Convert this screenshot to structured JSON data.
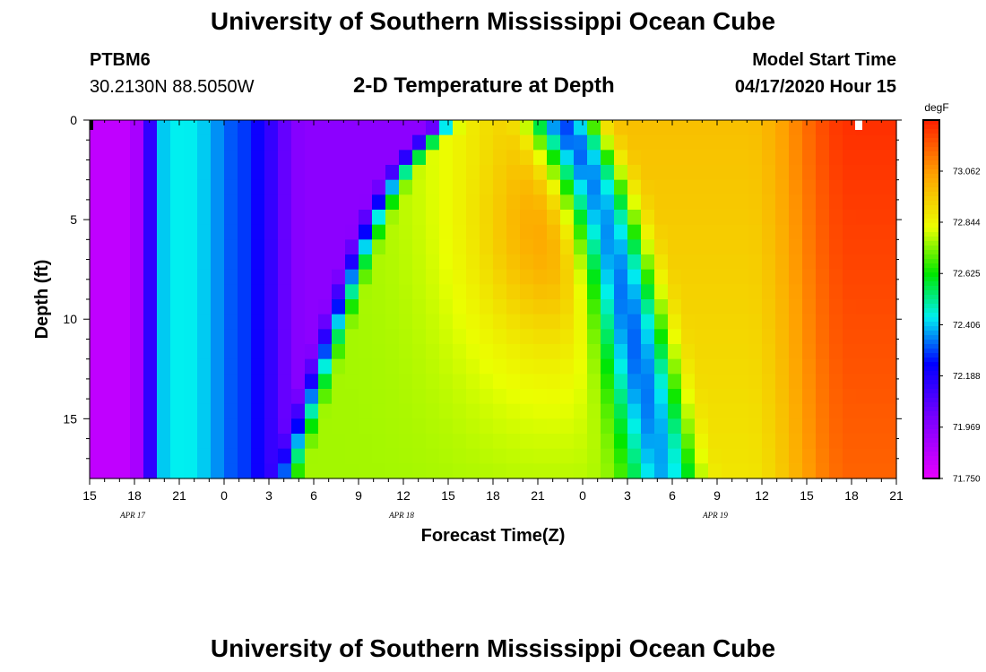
{
  "header": {
    "title": "University of Southern Mississippi Ocean Cube",
    "station": "PTBM6",
    "location": "30.2130N 88.5050W",
    "plot_title": "2-D Temperature at Depth",
    "model_start_label": "Model Start Time",
    "model_start_value": "04/17/2020 Hour 15"
  },
  "footer": {
    "title": "University of Southern Mississippi Ocean Cube"
  },
  "chart_data": {
    "type": "heatmap",
    "title": "2-D Temperature at Depth",
    "xlabel": "Forecast Time(Z)",
    "ylabel": "Depth (ft)",
    "x_tick_labels": [
      "15",
      "18",
      "21",
      "0",
      "3",
      "6",
      "9",
      "12",
      "15",
      "18",
      "21",
      "0",
      "3",
      "6",
      "9",
      "12",
      "15",
      "18",
      "21"
    ],
    "x_date_labels": [
      {
        "label": "APR 17",
        "tick_index": 1
      },
      {
        "label": "APR 18",
        "tick_index": 7
      },
      {
        "label": "APR 19",
        "tick_index": 14
      }
    ],
    "y_tick_labels": [
      "0",
      "5",
      "10",
      "15"
    ],
    "y_tick_values": [
      0,
      5,
      10,
      15
    ],
    "ylim": [
      0,
      18
    ],
    "y_inverted": true,
    "colorbar": {
      "unit": "degF",
      "tick_labels": [
        "73.062",
        "72.844",
        "72.625",
        "72.406",
        "72.188",
        "71.969",
        "71.750"
      ],
      "range": [
        71.75,
        73.28
      ]
    },
    "grid": false
  }
}
